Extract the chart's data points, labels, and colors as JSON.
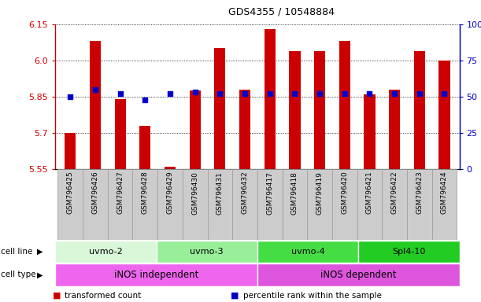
{
  "title": "GDS4355 / 10548884",
  "samples": [
    "GSM796425",
    "GSM796426",
    "GSM796427",
    "GSM796428",
    "GSM796429",
    "GSM796430",
    "GSM796431",
    "GSM796432",
    "GSM796417",
    "GSM796418",
    "GSM796419",
    "GSM796420",
    "GSM796421",
    "GSM796422",
    "GSM796423",
    "GSM796424"
  ],
  "transformed_count": [
    5.7,
    6.08,
    5.84,
    5.73,
    5.56,
    5.875,
    6.05,
    5.88,
    6.13,
    6.04,
    6.04,
    6.08,
    5.86,
    5.88,
    6.04,
    6.0
  ],
  "percentile_rank": [
    50,
    55,
    52,
    48,
    52,
    53,
    52,
    52,
    52,
    52,
    52,
    52,
    52,
    52,
    52,
    52
  ],
  "ylim_left": [
    5.55,
    6.15
  ],
  "ylim_right": [
    0,
    100
  ],
  "yticks_left": [
    5.55,
    5.7,
    5.85,
    6.0,
    6.15
  ],
  "yticks_right": [
    0,
    25,
    50,
    75,
    100
  ],
  "bar_color": "#cc0000",
  "dot_color": "#0000cc",
  "cell_line_groups": [
    {
      "label": "uvmo-2",
      "start": 0,
      "end": 3,
      "color": "#d9f7d9"
    },
    {
      "label": "uvmo-3",
      "start": 4,
      "end": 7,
      "color": "#99ee99"
    },
    {
      "label": "uvmo-4",
      "start": 8,
      "end": 11,
      "color": "#44dd44"
    },
    {
      "label": "Spl4-10",
      "start": 12,
      "end": 15,
      "color": "#22cc22"
    }
  ],
  "cell_type_groups": [
    {
      "label": "iNOS independent",
      "start": 0,
      "end": 7,
      "color": "#ee66ee"
    },
    {
      "label": "iNOS dependent",
      "start": 8,
      "end": 15,
      "color": "#dd55dd"
    }
  ],
  "legend_items": [
    {
      "label": "transformed count",
      "color": "#cc0000"
    },
    {
      "label": "percentile rank within the sample",
      "color": "#0000cc"
    }
  ],
  "bar_bottom": 5.55,
  "label_bgcolor": "#cccccc",
  "label_edgecolor": "#999999"
}
